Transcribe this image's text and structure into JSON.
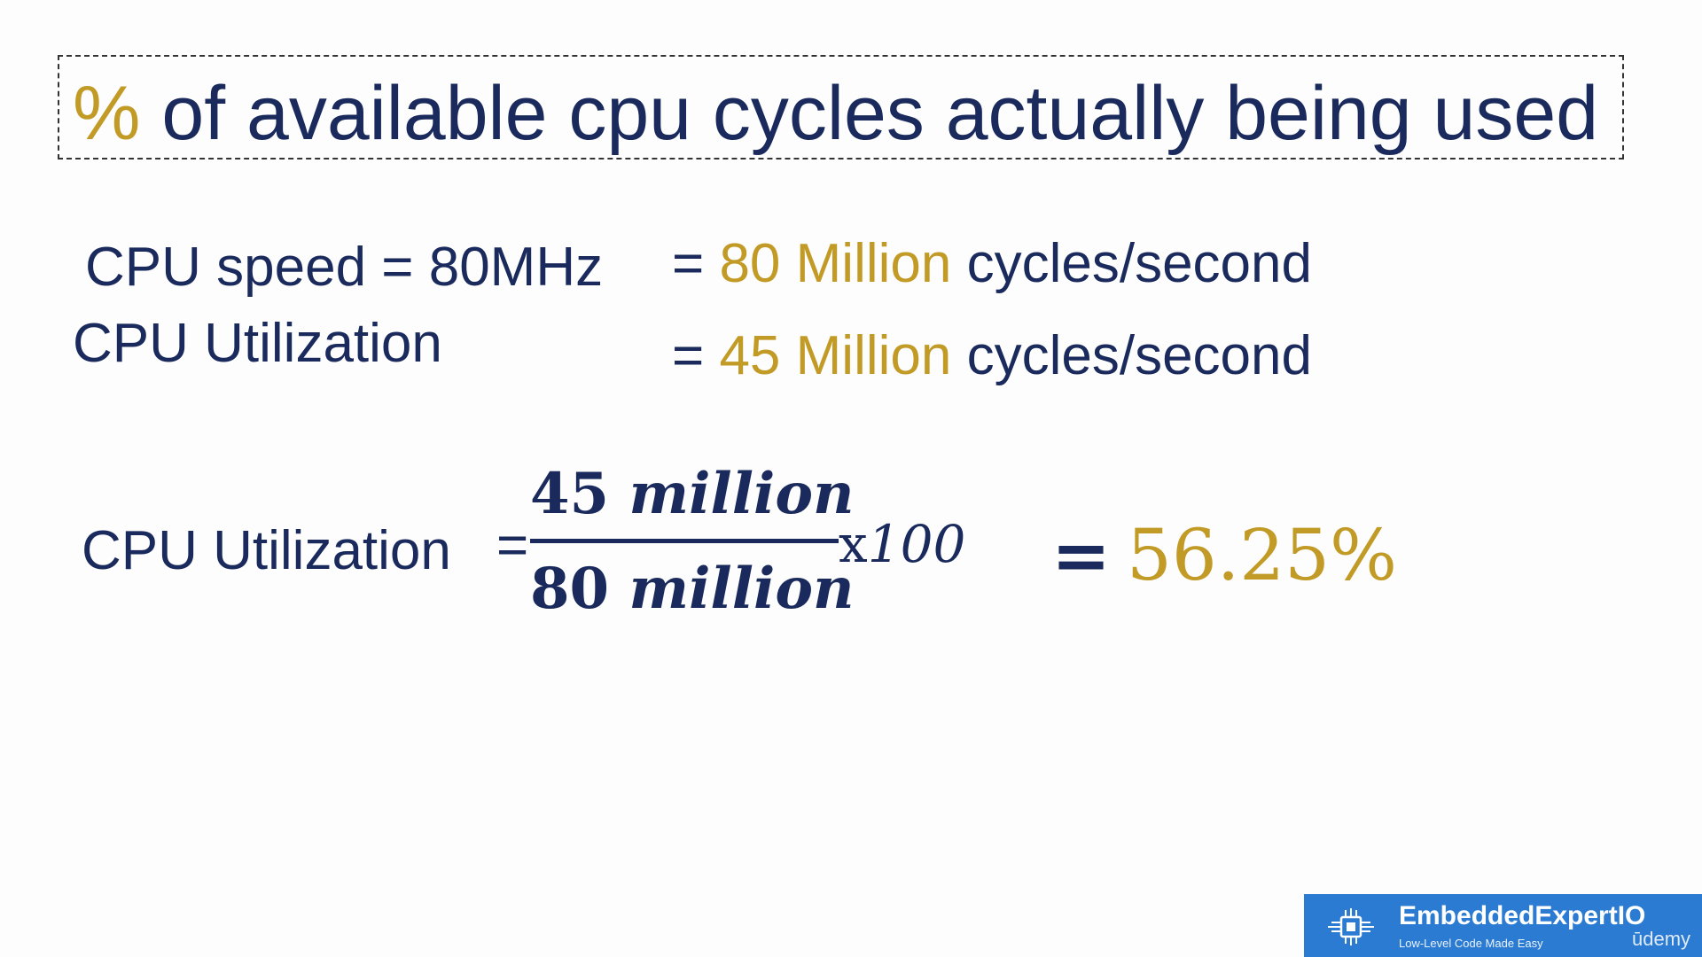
{
  "title": {
    "symbol": "%",
    "text": "of available cpu cycles actually being used"
  },
  "rows": [
    {
      "label": "CPU speed = 80MHz",
      "eq": "=",
      "value": "80 Million",
      "unit": "cycles/second"
    },
    {
      "label": "CPU Utilization",
      "eq": "=",
      "value": "45 Million",
      "unit": "cycles/second"
    }
  ],
  "formula": {
    "label": "CPU Utilization",
    "eq": "=",
    "numerator_num": "45",
    "numerator_word": "million",
    "denominator_num": "80",
    "denominator_word": "million",
    "times": "x",
    "multiplier": "100",
    "result_eq": "=",
    "result": "56.25%"
  },
  "brand": {
    "name": "EmbeddedExpertIO",
    "tagline": "Low-Level Code Made Easy",
    "platform": "ūdemy"
  },
  "colors": {
    "navy": "#1a2a5c",
    "gold": "#c29a26",
    "brand_blue": "#2b7bd2"
  }
}
